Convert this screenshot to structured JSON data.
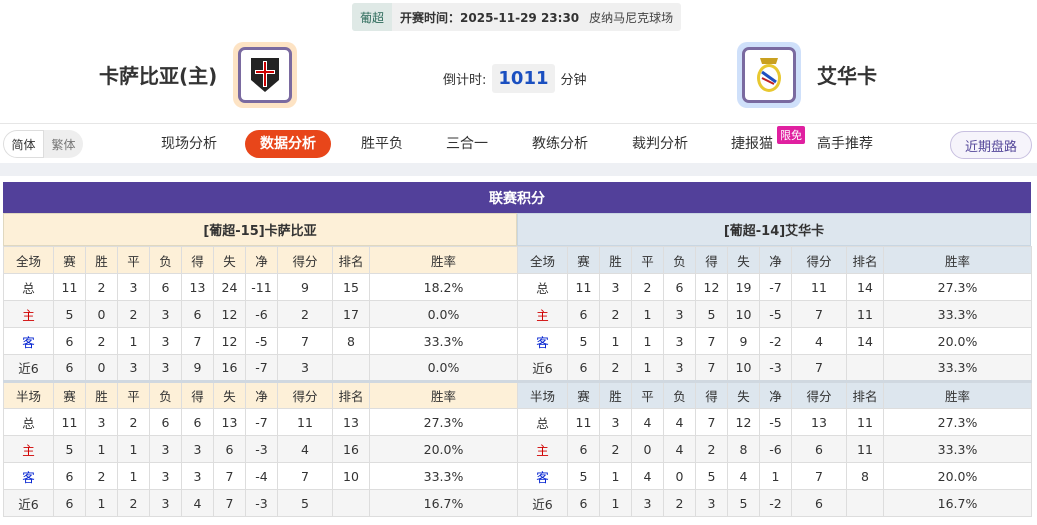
{
  "header": {
    "league": "葡超",
    "kickoff": "开赛时间：2025-11-29 23:30",
    "venue": "皮纳马尼克球场",
    "home_team": "卡萨比亚(主)",
    "away_team": "艾华卡",
    "countdown_label": "倒计时:",
    "countdown_value": "1011",
    "countdown_unit": "分钟"
  },
  "nav": {
    "lang": [
      "简体",
      "繁体"
    ],
    "items": [
      "现场分析",
      "数据分析",
      "胜平负",
      "三合一",
      "教练分析",
      "裁判分析",
      "捷报猫",
      "高手推荐"
    ],
    "active": "数据分析",
    "badge": "限免",
    "recent": "近期盘路"
  },
  "standings": {
    "title": "联赛积分",
    "home": {
      "header": "[葡超-15]卡萨比亚",
      "full": {
        "cols": [
          "全场",
          "赛",
          "胜",
          "平",
          "负",
          "得",
          "失",
          "净",
          "得分",
          "排名",
          "胜率"
        ],
        "rows": [
          [
            "总",
            "11",
            "2",
            "3",
            "6",
            "13",
            "24",
            "-11",
            "9",
            "15",
            "18.2%"
          ],
          [
            "主",
            "5",
            "0",
            "2",
            "3",
            "6",
            "12",
            "-6",
            "2",
            "17",
            "0.0%"
          ],
          [
            "客",
            "6",
            "2",
            "1",
            "3",
            "7",
            "12",
            "-5",
            "7",
            "8",
            "33.3%"
          ],
          [
            "近6",
            "6",
            "0",
            "3",
            "3",
            "9",
            "16",
            "-7",
            "3",
            "",
            "0.0%"
          ]
        ]
      },
      "half": {
        "cols": [
          "半场",
          "赛",
          "胜",
          "平",
          "负",
          "得",
          "失",
          "净",
          "得分",
          "排名",
          "胜率"
        ],
        "rows": [
          [
            "总",
            "11",
            "3",
            "2",
            "6",
            "6",
            "13",
            "-7",
            "11",
            "13",
            "27.3%"
          ],
          [
            "主",
            "5",
            "1",
            "1",
            "3",
            "3",
            "6",
            "-3",
            "4",
            "16",
            "20.0%"
          ],
          [
            "客",
            "6",
            "2",
            "1",
            "3",
            "3",
            "7",
            "-4",
            "7",
            "10",
            "33.3%"
          ],
          [
            "近6",
            "6",
            "1",
            "2",
            "3",
            "4",
            "7",
            "-3",
            "5",
            "",
            "16.7%"
          ]
        ]
      }
    },
    "away": {
      "header": "[葡超-14]艾华卡",
      "full": {
        "cols": [
          "全场",
          "赛",
          "胜",
          "平",
          "负",
          "得",
          "失",
          "净",
          "得分",
          "排名",
          "胜率"
        ],
        "rows": [
          [
            "总",
            "11",
            "3",
            "2",
            "6",
            "12",
            "19",
            "-7",
            "11",
            "14",
            "27.3%"
          ],
          [
            "主",
            "6",
            "2",
            "1",
            "3",
            "5",
            "10",
            "-5",
            "7",
            "11",
            "33.3%"
          ],
          [
            "客",
            "5",
            "1",
            "1",
            "3",
            "7",
            "9",
            "-2",
            "4",
            "14",
            "20.0%"
          ],
          [
            "近6",
            "6",
            "2",
            "1",
            "3",
            "7",
            "10",
            "-3",
            "7",
            "",
            "33.3%"
          ]
        ]
      },
      "half": {
        "cols": [
          "半场",
          "赛",
          "胜",
          "平",
          "负",
          "得",
          "失",
          "净",
          "得分",
          "排名",
          "胜率"
        ],
        "rows": [
          [
            "总",
            "11",
            "3",
            "4",
            "4",
            "7",
            "12",
            "-5",
            "13",
            "11",
            "27.3%"
          ],
          [
            "主",
            "6",
            "2",
            "0",
            "4",
            "2",
            "8",
            "-6",
            "6",
            "11",
            "33.3%"
          ],
          [
            "客",
            "5",
            "1",
            "4",
            "0",
            "5",
            "4",
            "1",
            "7",
            "8",
            "20.0%"
          ],
          [
            "近6",
            "6",
            "1",
            "3",
            "2",
            "3",
            "5",
            "-2",
            "6",
            "",
            "16.7%"
          ]
        ]
      }
    }
  },
  "colors": {
    "title_bg": "#52409a",
    "active_tab": "#e8461a",
    "home_label": "#d00000",
    "away_label": "#0020d0"
  }
}
